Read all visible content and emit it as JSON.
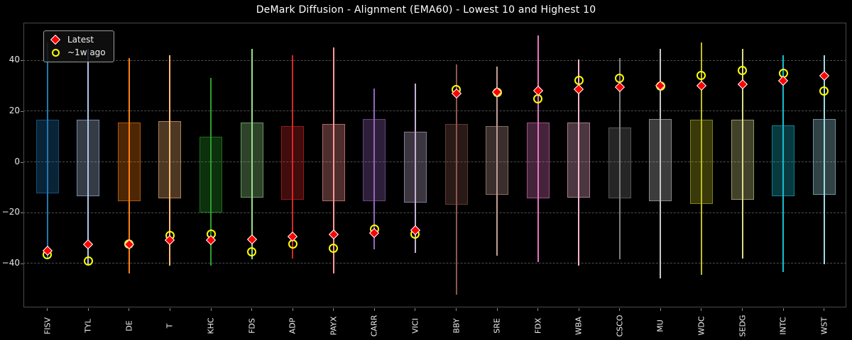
{
  "chart_data": {
    "type": "boxplot",
    "title": "DeMark Diffusion - Alignment (EMA60) - Lowest 10 and Highest 10",
    "xlabel": "",
    "ylabel": "",
    "ylim": [
      -57,
      54
    ],
    "yticks": [
      40,
      20,
      0,
      -20,
      -40
    ],
    "grid": "horizontal-dashed",
    "legend_position": "upper-left",
    "legend": [
      {
        "label": "Latest",
        "marker": "diamond",
        "color": "#ff0000"
      },
      {
        "label": "~1w ago",
        "marker": "open-circle",
        "color": "#ffff00"
      }
    ],
    "series": [
      {
        "symbol": "FISV",
        "color": "#1f77b4",
        "whisker_high": 47,
        "whisker_low": -38,
        "box_high": 16.5,
        "box_low": -12.5,
        "latest": -35,
        "week_ago": -36.5
      },
      {
        "symbol": "TYL",
        "color": "#aec7e8",
        "whisker_high": 44.5,
        "whisker_low": -40.5,
        "box_high": 16.5,
        "box_low": -13.5,
        "latest": -32.5,
        "week_ago": -39
      },
      {
        "symbol": "DE",
        "color": "#ff7f0e",
        "whisker_high": 41,
        "whisker_low": -44,
        "box_high": 15.5,
        "box_low": -15.5,
        "latest": -32.5,
        "week_ago": -32.5
      },
      {
        "symbol": "T",
        "color": "#ffbb78",
        "whisker_high": 42,
        "whisker_low": -41,
        "box_high": 16,
        "box_low": -14.5,
        "latest": -31,
        "week_ago": -29
      },
      {
        "symbol": "KHC",
        "color": "#2ca02c",
        "whisker_high": 33,
        "whisker_low": -41,
        "box_high": 10,
        "box_low": -20,
        "latest": -31,
        "week_ago": -28.5
      },
      {
        "symbol": "FDS",
        "color": "#98df8a",
        "whisker_high": 44.5,
        "whisker_low": -38.5,
        "box_high": 15.5,
        "box_low": -14,
        "latest": -30.5,
        "week_ago": -35.5
      },
      {
        "symbol": "ADP",
        "color": "#d62728",
        "whisker_high": 42,
        "whisker_low": -38,
        "box_high": 14,
        "box_low": -15,
        "latest": -29.5,
        "week_ago": -32.5
      },
      {
        "symbol": "PAYX",
        "color": "#ff9896",
        "whisker_high": 45,
        "whisker_low": -44,
        "box_high": 15,
        "box_low": -15.5,
        "latest": -28.5,
        "week_ago": -34
      },
      {
        "symbol": "CARR",
        "color": "#9467bd",
        "whisker_high": 29,
        "whisker_low": -34.5,
        "box_high": 17,
        "box_low": -15.5,
        "latest": -28,
        "week_ago": -26.5
      },
      {
        "symbol": "VICI",
        "color": "#c5b0d5",
        "whisker_high": 31,
        "whisker_low": -36,
        "box_high": 12,
        "box_low": -16,
        "latest": -27,
        "week_ago": -28.5
      },
      {
        "symbol": "BBY",
        "color": "#8c564b",
        "whisker_high": 38.5,
        "whisker_low": -52.5,
        "box_high": 15,
        "box_low": -17,
        "latest": 27,
        "week_ago": 28.5
      },
      {
        "symbol": "SRE",
        "color": "#c49c94",
        "whisker_high": 37.5,
        "whisker_low": -37,
        "box_high": 14,
        "box_low": -13,
        "latest": 27.5,
        "week_ago": 27.5
      },
      {
        "symbol": "FDX",
        "color": "#e377c2",
        "whisker_high": 50,
        "whisker_low": -39.5,
        "box_high": 15.5,
        "box_low": -14.5,
        "latest": 28,
        "week_ago": 25
      },
      {
        "symbol": "WBA",
        "color": "#f7b6d2",
        "whisker_high": 40.5,
        "whisker_low": -41,
        "box_high": 15.5,
        "box_low": -14,
        "latest": 28.5,
        "week_ago": 32
      },
      {
        "symbol": "CSCO",
        "color": "#7f7f7f",
        "whisker_high": 41,
        "whisker_low": -38.5,
        "box_high": 13.5,
        "box_low": -14.5,
        "latest": 29.5,
        "week_ago": 33
      },
      {
        "symbol": "MU",
        "color": "#c7c7c7",
        "whisker_high": 44.5,
        "whisker_low": -46,
        "box_high": 17,
        "box_low": -15.5,
        "latest": 30,
        "week_ago": 30
      },
      {
        "symbol": "WDC",
        "color": "#bcbd22",
        "whisker_high": 47,
        "whisker_low": -44.5,
        "box_high": 16.5,
        "box_low": -16.5,
        "latest": 30,
        "week_ago": 34
      },
      {
        "symbol": "SEDG",
        "color": "#dbdb8d",
        "whisker_high": 44.5,
        "whisker_low": -38,
        "box_high": 16.5,
        "box_low": -15,
        "latest": 30.5,
        "week_ago": 36
      },
      {
        "symbol": "INTC",
        "color": "#17becf",
        "whisker_high": 42,
        "whisker_low": -43.5,
        "box_high": 14.5,
        "box_low": -13.5,
        "latest": 32,
        "week_ago": 35
      },
      {
        "symbol": "WST",
        "color": "#9edae5",
        "whisker_high": 42,
        "whisker_low": -40.5,
        "box_high": 17,
        "box_low": -13,
        "latest": 34,
        "week_ago": 28
      }
    ]
  }
}
